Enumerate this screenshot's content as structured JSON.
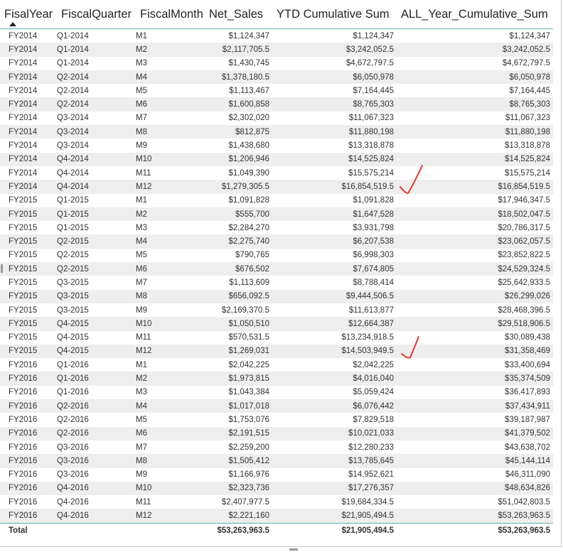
{
  "columns": [
    {
      "key": "fiscal_year",
      "label": "FisalYear"
    },
    {
      "key": "fiscal_quarter",
      "label": "FiscalQuarter"
    },
    {
      "key": "fiscal_month",
      "label": "FiscalMonth"
    },
    {
      "key": "net_sales",
      "label": "Net_Sales"
    },
    {
      "key": "ytd_cumulative_sum",
      "label": "YTD Cumulative Sum"
    },
    {
      "key": "all_year_cumulative_sum",
      "label": "ALL_Year_Cumulative_Sum"
    }
  ],
  "sort_icon": "sort-ascending-icon",
  "rows": [
    [
      "FY2014",
      "Q1-2014",
      "M1",
      "$1,124,347",
      "$1,124,347",
      "$1,124,347"
    ],
    [
      "FY2014",
      "Q1-2014",
      "M2",
      "$2,117,705.5",
      "$3,242,052.5",
      "$3,242,052.5"
    ],
    [
      "FY2014",
      "Q1-2014",
      "M3",
      "$1,430,745",
      "$4,672,797.5",
      "$4,672,797.5"
    ],
    [
      "FY2014",
      "Q2-2014",
      "M4",
      "$1,378,180.5",
      "$6,050,978",
      "$6,050,978"
    ],
    [
      "FY2014",
      "Q2-2014",
      "M5",
      "$1,113,467",
      "$7,164,445",
      "$7,164,445"
    ],
    [
      "FY2014",
      "Q2-2014",
      "M6",
      "$1,600,858",
      "$8,765,303",
      "$8,765,303"
    ],
    [
      "FY2014",
      "Q3-2014",
      "M7",
      "$2,302,020",
      "$11,067,323",
      "$11,067,323"
    ],
    [
      "FY2014",
      "Q3-2014",
      "M8",
      "$812,875",
      "$11,880,198",
      "$11,880,198"
    ],
    [
      "FY2014",
      "Q3-2014",
      "M9",
      "$1,438,680",
      "$13,318,878",
      "$13,318,878"
    ],
    [
      "FY2014",
      "Q4-2014",
      "M10",
      "$1,206,946",
      "$14,525,824",
      "$14,525,824"
    ],
    [
      "FY2014",
      "Q4-2014",
      "M11",
      "$1,049,390",
      "$15,575,214",
      "$15,575,214"
    ],
    [
      "FY2014",
      "Q4-2014",
      "M12",
      "$1,279,305.5",
      "$16,854,519.5",
      "$16,854,519.5"
    ],
    [
      "FY2015",
      "Q1-2015",
      "M1",
      "$1,091,828",
      "$1,091,828",
      "$17,946,347.5"
    ],
    [
      "FY2015",
      "Q1-2015",
      "M2",
      "$555,700",
      "$1,647,528",
      "$18,502,047.5"
    ],
    [
      "FY2015",
      "Q1-2015",
      "M3",
      "$2,284,270",
      "$3,931,798",
      "$20,786,317.5"
    ],
    [
      "FY2015",
      "Q2-2015",
      "M4",
      "$2,275,740",
      "$6,207,538",
      "$23,062,057.5"
    ],
    [
      "FY2015",
      "Q2-2015",
      "M5",
      "$790,765",
      "$6,998,303",
      "$23,852,822.5"
    ],
    [
      "FY2015",
      "Q2-2015",
      "M6",
      "$676,502",
      "$7,674,805",
      "$24,529,324.5"
    ],
    [
      "FY2015",
      "Q3-2015",
      "M7",
      "$1,113,609",
      "$8,788,414",
      "$25,642,933.5"
    ],
    [
      "FY2015",
      "Q3-2015",
      "M8",
      "$656,092.5",
      "$9,444,506.5",
      "$26,299,026"
    ],
    [
      "FY2015",
      "Q3-2015",
      "M9",
      "$2,169,370.5",
      "$11,613,877",
      "$28,468,396.5"
    ],
    [
      "FY2015",
      "Q4-2015",
      "M10",
      "$1,050,510",
      "$12,664,387",
      "$29,518,906.5"
    ],
    [
      "FY2015",
      "Q4-2015",
      "M11",
      "$570,531.5",
      "$13,234,918.5",
      "$30,089,438"
    ],
    [
      "FY2015",
      "Q4-2015",
      "M12",
      "$1,269,031",
      "$14,503,949.5",
      "$31,358,469"
    ],
    [
      "FY2016",
      "Q1-2016",
      "M1",
      "$2,042,225",
      "$2,042,225",
      "$33,400,694"
    ],
    [
      "FY2016",
      "Q1-2016",
      "M2",
      "$1,973,815",
      "$4,016,040",
      "$35,374,509"
    ],
    [
      "FY2016",
      "Q1-2016",
      "M3",
      "$1,043,384",
      "$5,059,424",
      "$36,417,893"
    ],
    [
      "FY2016",
      "Q2-2016",
      "M4",
      "$1,017,018",
      "$6,076,442",
      "$37,434,911"
    ],
    [
      "FY2016",
      "Q2-2016",
      "M5",
      "$1,753,076",
      "$7,829,518",
      "$39,187,987"
    ],
    [
      "FY2016",
      "Q2-2016",
      "M6",
      "$2,191,515",
      "$10,021,033",
      "$41,379,502"
    ],
    [
      "FY2016",
      "Q3-2016",
      "M7",
      "$2,259,200",
      "$12,280,233",
      "$43,638,702"
    ],
    [
      "FY2016",
      "Q3-2016",
      "M8",
      "$1,505,412",
      "$13,785,645",
      "$45,144,114"
    ],
    [
      "FY2016",
      "Q3-2016",
      "M9",
      "$1,166,976",
      "$14,952,621",
      "$46,311,090"
    ],
    [
      "FY2016",
      "Q4-2016",
      "M10",
      "$2,323,736",
      "$17,276,357",
      "$48,634,826"
    ],
    [
      "FY2016",
      "Q4-2016",
      "M11",
      "$2,407,977.5",
      "$19,684,334.5",
      "$51,042,803.5"
    ],
    [
      "FY2016",
      "Q4-2016",
      "M12",
      "$2,221,160",
      "$21,905,494.5",
      "$53,263,963.5"
    ]
  ],
  "total": {
    "label": "Total",
    "net_sales": "$53,263,963.5",
    "ytd_cumulative_sum": "$21,905,494.5",
    "all_year_cumulative_sum": "$53,263,963.5"
  },
  "annotations": {
    "color": "#e8352c",
    "checkmark_icon": "red-checkmark-icon"
  },
  "colors": {
    "header_border": "#5ab4ac",
    "row_stripe": "#eeeeee"
  }
}
